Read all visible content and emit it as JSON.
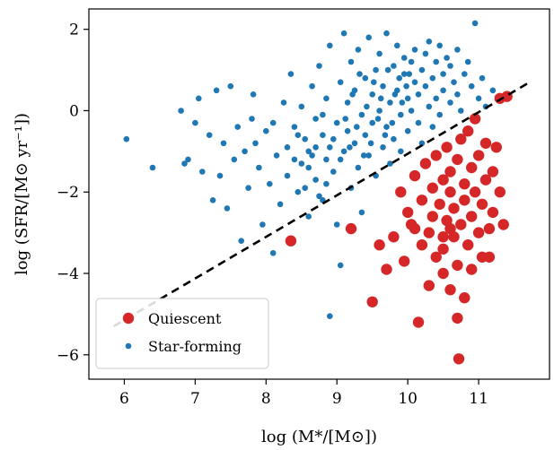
{
  "chart_data": {
    "type": "scatter",
    "title": "",
    "xlabel": "log (M*/[M⊙])",
    "ylabel": "log (SFR/[M⊙ yr⁻¹])",
    "xlim": [
      5.5,
      12.0
    ],
    "ylim": [
      -6.6,
      2.5
    ],
    "xticks": [
      6,
      7,
      8,
      9,
      10,
      11
    ],
    "yticks": [
      2,
      0,
      -2,
      -4,
      -6
    ],
    "xtick_labels": [
      "6",
      "7",
      "8",
      "9",
      "10",
      "11"
    ],
    "ytick_labels": [
      "2",
      "0",
      "−2",
      "−4",
      "−6"
    ],
    "grid": false,
    "legend_position": "bottom-left",
    "colors": {
      "quiescent": "#d62728",
      "star_forming": "#1f77b4",
      "line": "#000000"
    },
    "divider_line": {
      "style": "dashed",
      "x": [
        5.85,
        11.72
      ],
      "y": [
        -5.3,
        0.7
      ]
    },
    "series": [
      {
        "name": "Quiescent",
        "marker_color": "#d62728",
        "marker": "large-dot",
        "points": [
          [
            8.35,
            -3.2
          ],
          [
            9.2,
            -2.9
          ],
          [
            9.5,
            -4.7
          ],
          [
            9.6,
            -3.3
          ],
          [
            9.7,
            -3.9
          ],
          [
            9.8,
            -3.1
          ],
          [
            9.9,
            -2.0
          ],
          [
            9.95,
            -3.7
          ],
          [
            10.0,
            -2.5
          ],
          [
            10.05,
            -2.8
          ],
          [
            10.1,
            -1.6
          ],
          [
            10.15,
            -5.2
          ],
          [
            10.2,
            -3.3
          ],
          [
            10.2,
            -2.2
          ],
          [
            10.25,
            -1.3
          ],
          [
            10.3,
            -3.0
          ],
          [
            10.35,
            -2.6
          ],
          [
            10.35,
            -1.9
          ],
          [
            10.4,
            -1.1
          ],
          [
            10.4,
            -3.6
          ],
          [
            10.45,
            -2.3
          ],
          [
            10.5,
            -4.0
          ],
          [
            10.5,
            -3.4
          ],
          [
            10.5,
            -1.7
          ],
          [
            10.55,
            -2.7
          ],
          [
            10.55,
            -0.9
          ],
          [
            10.6,
            -4.4
          ],
          [
            10.6,
            -2.0
          ],
          [
            10.6,
            -1.5
          ],
          [
            10.65,
            -3.1
          ],
          [
            10.65,
            -2.4
          ],
          [
            10.7,
            -1.2
          ],
          [
            10.7,
            -3.8
          ],
          [
            10.7,
            -5.1
          ],
          [
            10.72,
            -6.1
          ],
          [
            10.75,
            -2.8
          ],
          [
            10.75,
            -0.7
          ],
          [
            10.8,
            -1.8
          ],
          [
            10.8,
            -2.2
          ],
          [
            10.8,
            -4.6
          ],
          [
            10.85,
            -3.3
          ],
          [
            10.85,
            -0.5
          ],
          [
            10.9,
            -1.4
          ],
          [
            10.9,
            -2.6
          ],
          [
            10.95,
            -2.0
          ],
          [
            10.95,
            -0.2
          ],
          [
            11.0,
            -3.0
          ],
          [
            11.0,
            -1.1
          ],
          [
            11.05,
            -3.6
          ],
          [
            11.05,
            -2.3
          ],
          [
            11.1,
            -0.8
          ],
          [
            11.1,
            -1.7
          ],
          [
            11.15,
            -2.9
          ],
          [
            11.15,
            -3.6
          ],
          [
            11.2,
            -1.5
          ],
          [
            11.2,
            -2.5
          ],
          [
            11.25,
            -0.9
          ],
          [
            11.3,
            0.3
          ],
          [
            11.3,
            -2.0
          ],
          [
            11.35,
            -2.8
          ],
          [
            11.4,
            0.35
          ],
          [
            10.5,
            -3.1
          ],
          [
            10.3,
            -4.3
          ],
          [
            10.9,
            -3.9
          ],
          [
            10.1,
            -2.9
          ],
          [
            10.6,
            -2.9
          ]
        ]
      },
      {
        "name": "Star-forming",
        "marker_color": "#1f77b4",
        "marker": "small-dot",
        "points": [
          [
            6.03,
            -0.7
          ],
          [
            6.4,
            -1.4
          ],
          [
            6.8,
            0.0
          ],
          [
            6.85,
            -1.3
          ],
          [
            6.9,
            -1.2
          ],
          [
            7.0,
            -0.3
          ],
          [
            7.05,
            0.3
          ],
          [
            7.1,
            -1.5
          ],
          [
            7.2,
            -0.6
          ],
          [
            7.25,
            -2.2
          ],
          [
            7.3,
            0.5
          ],
          [
            7.35,
            -1.6
          ],
          [
            7.4,
            -0.8
          ],
          [
            7.45,
            -2.4
          ],
          [
            7.5,
            0.6
          ],
          [
            7.55,
            -1.2
          ],
          [
            7.6,
            -0.4
          ],
          [
            7.65,
            -3.2
          ],
          [
            7.7,
            -1.0
          ],
          [
            7.75,
            -1.9
          ],
          [
            7.8,
            -0.2
          ],
          [
            7.82,
            0.4
          ],
          [
            7.85,
            -0.8
          ],
          [
            7.9,
            -1.4
          ],
          [
            7.95,
            -2.8
          ],
          [
            8.0,
            -0.5
          ],
          [
            8.05,
            -1.8
          ],
          [
            8.1,
            -3.5
          ],
          [
            8.1,
            -0.3
          ],
          [
            8.15,
            -1.1
          ],
          [
            8.2,
            -2.3
          ],
          [
            8.25,
            0.2
          ],
          [
            8.3,
            -0.9
          ],
          [
            8.3,
            -1.6
          ],
          [
            8.35,
            0.9
          ],
          [
            8.4,
            -0.4
          ],
          [
            8.45,
            -2.0
          ],
          [
            8.5,
            -1.3
          ],
          [
            8.5,
            0.1
          ],
          [
            8.55,
            -0.7
          ],
          [
            8.6,
            -2.6
          ],
          [
            8.6,
            -1.0
          ],
          [
            8.65,
            0.6
          ],
          [
            8.7,
            -0.2
          ],
          [
            8.7,
            -1.7
          ],
          [
            8.75,
            1.1
          ],
          [
            8.8,
            -0.6
          ],
          [
            8.8,
            -2.2
          ],
          [
            8.85,
            -1.2
          ],
          [
            8.85,
            0.3
          ],
          [
            8.9,
            -0.9
          ],
          [
            8.9,
            1.6
          ],
          [
            8.9,
            -5.05
          ],
          [
            8.95,
            -1.5
          ],
          [
            9.0,
            -0.3
          ],
          [
            9.0,
            -2.8
          ],
          [
            9.05,
            0.7
          ],
          [
            9.05,
            -3.8
          ],
          [
            9.1,
            -1.0
          ],
          [
            9.1,
            1.9
          ],
          [
            9.15,
            -0.5
          ],
          [
            9.15,
            0.2
          ],
          [
            9.2,
            -1.9
          ],
          [
            9.2,
            1.2
          ],
          [
            9.25,
            -0.8
          ],
          [
            9.25,
            0.5
          ],
          [
            9.3,
            -1.4
          ],
          [
            9.3,
            1.5
          ],
          [
            9.35,
            -0.1
          ],
          [
            9.35,
            -2.5
          ],
          [
            9.4,
            0.8
          ],
          [
            9.4,
            -0.6
          ],
          [
            9.45,
            1.8
          ],
          [
            9.45,
            -1.1
          ],
          [
            9.5,
            0.4
          ],
          [
            9.5,
            -0.3
          ],
          [
            9.55,
            1.0
          ],
          [
            9.55,
            -1.6
          ],
          [
            9.6,
            0.0
          ],
          [
            9.6,
            1.4
          ],
          [
            9.65,
            -0.9
          ],
          [
            9.65,
            0.6
          ],
          [
            9.7,
            1.9
          ],
          [
            9.7,
            -0.4
          ],
          [
            9.75,
            0.2
          ],
          [
            9.75,
            -1.3
          ],
          [
            9.8,
            1.1
          ],
          [
            9.8,
            -0.7
          ],
          [
            9.85,
            0.5
          ],
          [
            9.85,
            1.6
          ],
          [
            9.9,
            -0.1
          ],
          [
            9.9,
            -1.0
          ],
          [
            9.95,
            0.9
          ],
          [
            9.95,
            1.3
          ],
          [
            10.0,
            0.3
          ],
          [
            10.0,
            -0.5
          ],
          [
            10.05,
            1.2
          ],
          [
            10.05,
            0.0
          ],
          [
            10.1,
            0.7
          ],
          [
            10.1,
            1.5
          ],
          [
            10.15,
            -0.3
          ],
          [
            10.15,
            0.4
          ],
          [
            10.2,
            1.0
          ],
          [
            10.2,
            -0.8
          ],
          [
            10.25,
            0.6
          ],
          [
            10.25,
            1.4
          ],
          [
            10.3,
            0.1
          ],
          [
            10.3,
            1.7
          ],
          [
            10.35,
            0.8
          ],
          [
            10.35,
            -0.4
          ],
          [
            10.4,
            1.2
          ],
          [
            10.4,
            0.3
          ],
          [
            10.45,
            1.6
          ],
          [
            10.45,
            -0.1
          ],
          [
            10.5,
            0.9
          ],
          [
            10.5,
            0.5
          ],
          [
            10.55,
            1.3
          ],
          [
            10.6,
            0.2
          ],
          [
            10.6,
            1.1
          ],
          [
            10.65,
            0.7
          ],
          [
            10.7,
            1.5
          ],
          [
            10.7,
            0.4
          ],
          [
            10.75,
            0.0
          ],
          [
            10.8,
            0.9
          ],
          [
            10.85,
            1.2
          ],
          [
            10.9,
            0.6
          ],
          [
            10.95,
            2.15
          ],
          [
            11.0,
            0.3
          ],
          [
            11.05,
            0.8
          ],
          [
            11.1,
            0.1
          ],
          [
            11.2,
            0.5
          ],
          [
            8.6,
            -1.4
          ],
          [
            8.7,
            -0.9
          ],
          [
            8.8,
            -0.1
          ],
          [
            8.95,
            -0.7
          ],
          [
            9.05,
            -1.2
          ],
          [
            9.12,
            -0.2
          ],
          [
            9.18,
            -0.9
          ],
          [
            9.22,
            0.4
          ],
          [
            9.28,
            -0.4
          ],
          [
            9.32,
            0.9
          ],
          [
            9.38,
            -1.1
          ],
          [
            9.42,
            0.1
          ],
          [
            9.48,
            -0.8
          ],
          [
            9.52,
            0.7
          ],
          [
            9.58,
            -0.2
          ],
          [
            9.62,
            0.3
          ],
          [
            9.68,
            -0.6
          ],
          [
            9.72,
            1.0
          ],
          [
            9.78,
            -0.3
          ],
          [
            9.82,
            0.4
          ],
          [
            9.88,
            0.8
          ],
          [
            9.92,
            0.2
          ],
          [
            9.98,
            0.6
          ],
          [
            10.02,
            0.9
          ],
          [
            8.4,
            -1.2
          ],
          [
            8.45,
            -0.6
          ],
          [
            8.55,
            -1.9
          ],
          [
            8.65,
            -1.1
          ],
          [
            8.75,
            -2.1
          ],
          [
            8.85,
            -1.8
          ]
        ]
      }
    ]
  },
  "legend": {
    "items": [
      {
        "label": "Quiescent",
        "color": "#d62728"
      },
      {
        "label": "Star-forming",
        "color": "#1f77b4"
      }
    ]
  }
}
